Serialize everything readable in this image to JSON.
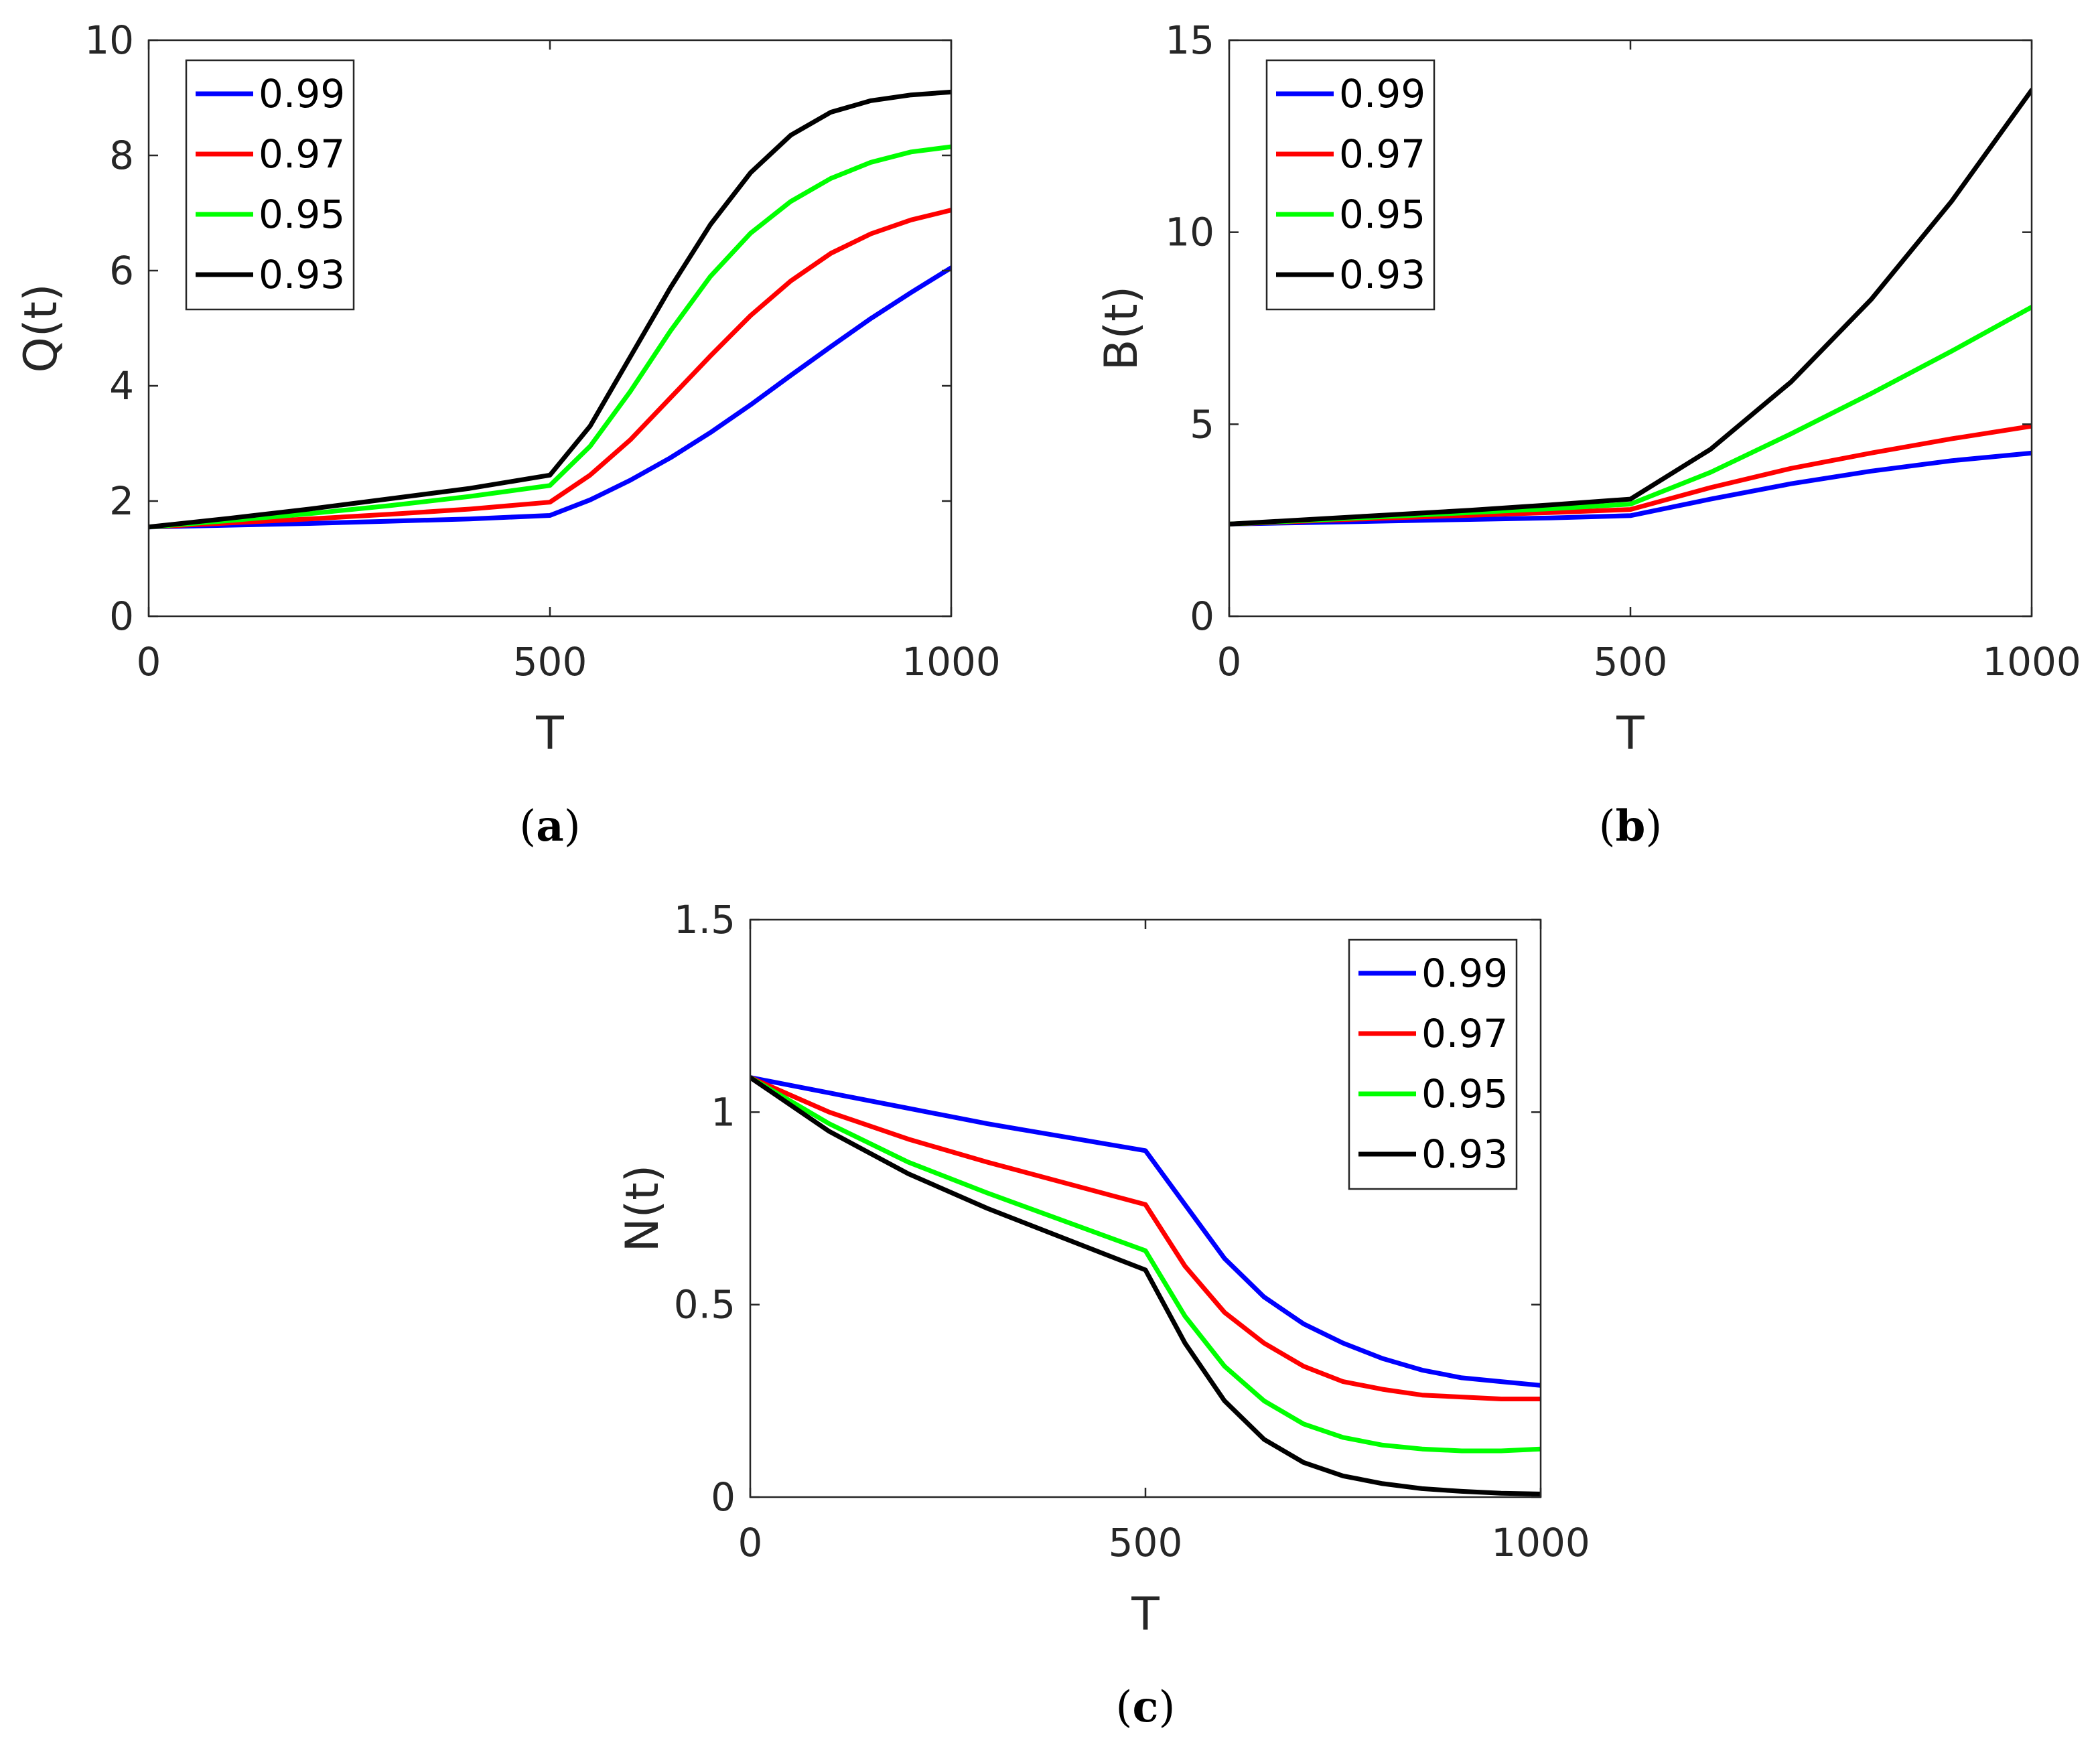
{
  "figure": {
    "colors": {
      "blue": "#0000ff",
      "red": "#ff0000",
      "green": "#00ff00",
      "black": "#000000",
      "axis": "#262626"
    }
  },
  "chart_data": [
    {
      "id": "a",
      "type": "line",
      "caption": {
        "open": "(",
        "letter": "a",
        "close": ")"
      },
      "xlabel": "T",
      "ylabel": "Q(t)",
      "xlim": [
        0,
        1000
      ],
      "ylim": [
        0,
        10
      ],
      "xticks": [
        0,
        500,
        1000
      ],
      "xtick_labels": [
        "0",
        "500",
        "1000"
      ],
      "yticks": [
        0,
        2,
        4,
        6,
        8,
        10
      ],
      "ytick_labels": [
        "0",
        "2",
        "4",
        "6",
        "8",
        "10"
      ],
      "legend_position": "top-left",
      "x": [
        0,
        100,
        200,
        300,
        400,
        500,
        550,
        600,
        650,
        700,
        750,
        800,
        850,
        900,
        950,
        1000
      ],
      "series": [
        {
          "name": "0.99",
          "color": "blue",
          "values": [
            1.55,
            1.58,
            1.61,
            1.65,
            1.69,
            1.75,
            2.02,
            2.36,
            2.75,
            3.19,
            3.67,
            4.18,
            4.68,
            5.17,
            5.62,
            6.05
          ]
        },
        {
          "name": "0.97",
          "color": "red",
          "values": [
            1.55,
            1.62,
            1.69,
            1.77,
            1.86,
            1.98,
            2.45,
            3.06,
            3.79,
            4.52,
            5.22,
            5.82,
            6.3,
            6.64,
            6.88,
            7.05
          ]
        },
        {
          "name": "0.95",
          "color": "green",
          "values": [
            1.55,
            1.66,
            1.78,
            1.92,
            2.08,
            2.27,
            2.95,
            3.9,
            4.95,
            5.9,
            6.65,
            7.2,
            7.6,
            7.88,
            8.06,
            8.15
          ]
        },
        {
          "name": "0.93",
          "color": "black",
          "values": [
            1.55,
            1.7,
            1.86,
            2.04,
            2.22,
            2.45,
            3.3,
            4.5,
            5.7,
            6.8,
            7.7,
            8.35,
            8.75,
            8.95,
            9.05,
            9.1
          ]
        }
      ]
    },
    {
      "id": "b",
      "type": "line",
      "caption": {
        "open": "(",
        "letter": "b",
        "close": ")"
      },
      "xlabel": "T",
      "ylabel": "B(t)",
      "xlim": [
        0,
        1000
      ],
      "ylim": [
        0,
        15
      ],
      "xticks": [
        0,
        500,
        1000
      ],
      "xtick_labels": [
        "0",
        "500",
        "1000"
      ],
      "yticks": [
        0,
        5,
        10,
        15
      ],
      "ytick_labels": [
        "0",
        "5",
        "10",
        "15"
      ],
      "legend_position": "top-left",
      "x": [
        0,
        100,
        200,
        300,
        400,
        500,
        600,
        700,
        800,
        900,
        1000
      ],
      "series": [
        {
          "name": "0.99",
          "color": "blue",
          "values": [
            2.4,
            2.44,
            2.48,
            2.52,
            2.56,
            2.62,
            3.05,
            3.45,
            3.78,
            4.05,
            4.25
          ]
        },
        {
          "name": "0.97",
          "color": "red",
          "values": [
            2.4,
            2.48,
            2.56,
            2.63,
            2.7,
            2.78,
            3.35,
            3.85,
            4.25,
            4.62,
            4.95
          ]
        },
        {
          "name": "0.95",
          "color": "green",
          "values": [
            2.4,
            2.5,
            2.6,
            2.7,
            2.8,
            2.92,
            3.75,
            4.75,
            5.8,
            6.9,
            8.05
          ]
        },
        {
          "name": "0.93",
          "color": "black",
          "values": [
            2.4,
            2.52,
            2.64,
            2.76,
            2.9,
            3.05,
            4.35,
            6.1,
            8.25,
            10.8,
            13.7
          ]
        }
      ]
    },
    {
      "id": "c",
      "type": "line",
      "caption": {
        "open": "(",
        "letter": "c",
        "close": ")"
      },
      "xlabel": "T",
      "ylabel": "N(t)",
      "xlim": [
        0,
        1000
      ],
      "ylim": [
        0,
        1.5
      ],
      "xticks": [
        0,
        500,
        1000
      ],
      "xtick_labels": [
        "0",
        "500",
        "1000"
      ],
      "yticks": [
        0,
        0.5,
        1,
        1.5
      ],
      "ytick_labels": [
        "0",
        "0.5",
        "1",
        "1.5"
      ],
      "legend_position": "top-right",
      "x": [
        0,
        100,
        200,
        300,
        400,
        500,
        550,
        600,
        650,
        700,
        750,
        800,
        850,
        900,
        950,
        1000
      ],
      "series": [
        {
          "name": "0.99",
          "color": "blue",
          "values": [
            1.09,
            1.05,
            1.01,
            0.97,
            0.935,
            0.9,
            0.76,
            0.62,
            0.52,
            0.45,
            0.4,
            0.36,
            0.33,
            0.31,
            0.3,
            0.29
          ]
        },
        {
          "name": "0.97",
          "color": "red",
          "values": [
            1.09,
            1.0,
            0.93,
            0.87,
            0.815,
            0.76,
            0.6,
            0.48,
            0.4,
            0.34,
            0.3,
            0.28,
            0.265,
            0.26,
            0.255,
            0.255
          ]
        },
        {
          "name": "0.95",
          "color": "green",
          "values": [
            1.09,
            0.97,
            0.87,
            0.79,
            0.715,
            0.64,
            0.47,
            0.34,
            0.25,
            0.19,
            0.155,
            0.135,
            0.125,
            0.12,
            0.12,
            0.125
          ]
        },
        {
          "name": "0.93",
          "color": "black",
          "values": [
            1.09,
            0.95,
            0.84,
            0.75,
            0.67,
            0.59,
            0.4,
            0.25,
            0.15,
            0.09,
            0.055,
            0.035,
            0.022,
            0.015,
            0.01,
            0.008
          ]
        }
      ]
    }
  ]
}
